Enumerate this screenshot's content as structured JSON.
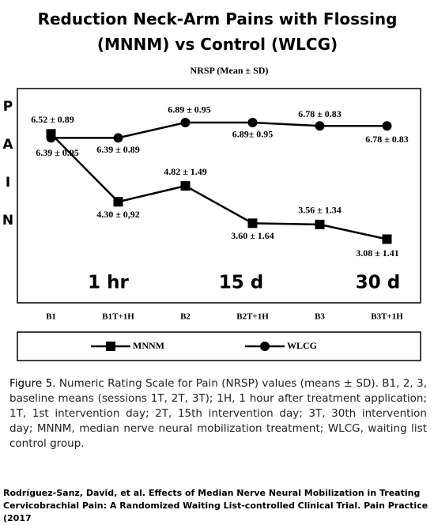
{
  "chart_data": {
    "type": "line",
    "title": "Reduction Neck-Arm Pains with Flossing (MNNM) vs Control (WLCG)",
    "subtitle": "NRSP (Mean ± SD)",
    "annotations": [
      "P",
      "A",
      "I",
      "N",
      "1 hr",
      "15 d",
      "30 d"
    ],
    "categories": [
      "B1",
      "B1T+1H",
      "B2",
      "B2T+1H",
      "B3",
      "B3T+1H"
    ],
    "series": [
      {
        "name": "MNNM",
        "color": "#000000",
        "marker": "square",
        "values": [
          6.52,
          4.3,
          4.82,
          3.6,
          3.56,
          3.08
        ],
        "value_labels": [
          "6.52 ± 0.89",
          "4.30 ± 0,92",
          "4.82 ± 1.49",
          "3.60 ± 1.64",
          "3.56 ± 1.34",
          "3.08 ± 1.41"
        ]
      },
      {
        "name": "WLCG",
        "color": "#000000",
        "marker": "circle",
        "values": [
          6.39,
          6.39,
          6.89,
          6.89,
          6.78,
          6.78
        ],
        "value_labels": [
          "6.39 ± 0.95",
          "6.39 ± 0.89",
          "6.89 ± 0.95",
          "6.89± 0.95",
          "6.78 ± 0.83",
          "6.78 ± 0.83"
        ]
      }
    ],
    "ylim": [
      1,
      8
    ],
    "legend": "bottom"
  },
  "caption": {
    "label": "Figure 5.",
    "text": "Numeric Rating Scale for Pain (NRSP) values (means ± SD). B1, 2, 3, baseline means (sessions 1T, 2T, 3T); 1H, 1 hour after treatment application; 1T, 1st intervention day; 2T, 15th intervention day; 3T, 30th intervention day; MNNM, median nerve neural mobilization treatment; WLCG, waiting list control group."
  },
  "citation": "Rodríguez-Sanz, David, et al. Effects of Median Nerve Neural Mobilization in Treating Cervicobrachial Pain: A Randomized Waiting List-controlled Clinical Trial. Pain Practice (2017"
}
